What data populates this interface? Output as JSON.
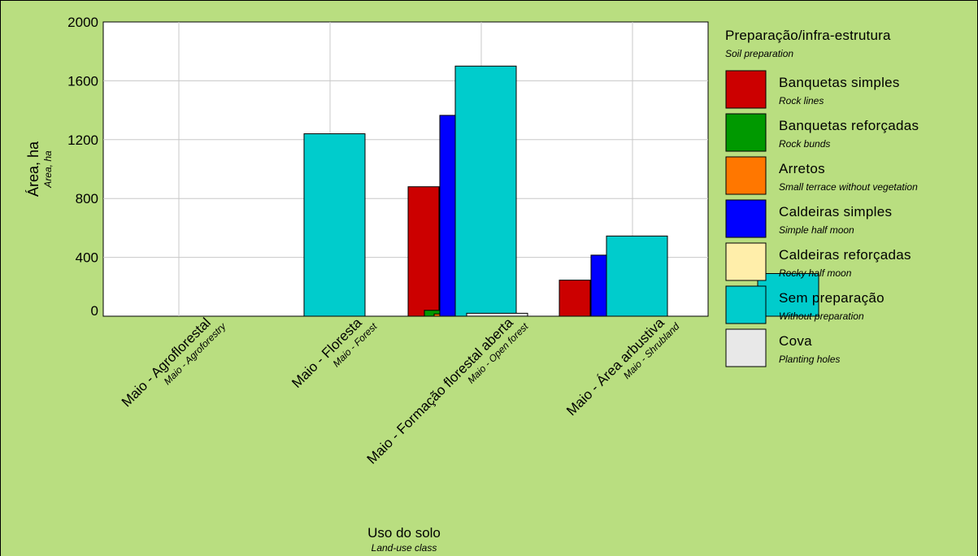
{
  "chart_data": {
    "type": "bar",
    "title": "",
    "ylabel": "Área, ha",
    "ylabel_sub": "Area, ha",
    "xlabel": "Uso do solo",
    "xlabel_sub": "Land-use class",
    "ylim": [
      0,
      2000
    ],
    "yticks": [
      0,
      400,
      800,
      1200,
      1600,
      2000
    ],
    "ytick_labels": [
      "0",
      "400",
      "800",
      "1200",
      "1600",
      "2000"
    ],
    "grid": true,
    "legend_position": "right",
    "categories": [
      {
        "label": "Maio - Agroflorestal",
        "sub": "Maio - Agroforestry"
      },
      {
        "label": "Maio - Floresta",
        "sub": "Maio - Forest"
      },
      {
        "label": "Maio - Formação florestal aberta",
        "sub": "Maio - Open forest"
      },
      {
        "label": "Maio - Área arbustiva",
        "sub": "Maio - Shrubland"
      }
    ],
    "legend_title": "Preparação/infra-estrutura",
    "legend_subtitle": "Soil preparation",
    "series": [
      {
        "name": "Banquetas simples",
        "sub": "Rock lines",
        "color": "#cc0000",
        "values": [
          0,
          880,
          245,
          0
        ]
      },
      {
        "name": "Banquetas reforçadas",
        "sub": "Rock bunds",
        "color": "#009900",
        "values": [
          0,
          40,
          0,
          0
        ]
      },
      {
        "name": "Arretos",
        "sub": "Small terrace without vegetation",
        "color": "#ff7700",
        "values": [
          0,
          15,
          0,
          0
        ]
      },
      {
        "name": "Caldeiras simples",
        "sub": "Simple half moon",
        "color": "#0000ff",
        "values": [
          0,
          1365,
          415,
          90
        ]
      },
      {
        "name": "Caldeiras reforçadas",
        "sub": "Rocky half moon",
        "color": "#ffeeaa",
        "values": [
          0,
          130,
          40,
          90
        ]
      },
      {
        "name": "Sem preparação",
        "sub": "Without preparation",
        "color": "#00cccc",
        "values": [
          1240,
          1700,
          545,
          290
        ]
      },
      {
        "name": "Cova",
        "sub": "Planting holes",
        "color": "#e8e8e8",
        "values": [
          0,
          20,
          0,
          0
        ]
      }
    ]
  }
}
